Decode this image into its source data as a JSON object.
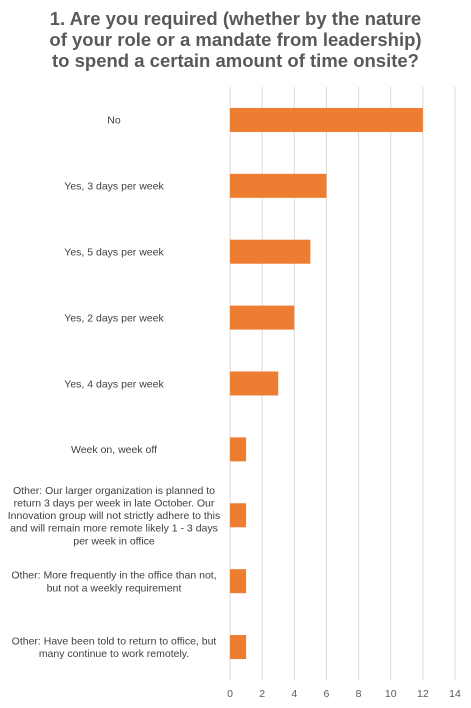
{
  "chart_data": {
    "type": "bar",
    "orientation": "horizontal",
    "title": "1. Are you required (whether by the nature of your role or a mandate from leadership) to spend a certain amount of time onsite?",
    "title_lines": [
      "1. Are you required (whether by the nature",
      "of your role or a mandate from leadership)",
      "to spend a certain amount of time onsite?"
    ],
    "categories": [
      "No",
      "Yes, 3 days per week",
      "Yes, 5 days per week",
      "Yes, 2 days per week",
      "Yes, 4 days per week",
      "Week on, week off",
      "Other: Our larger organization is planned to return 3 days per week in late October. Our Innovation group will not strictly adhere to this and will remain more remote likely 1 - 3 days per week in office",
      "Other: More frequently in the office than not, but not a weekly requirement",
      "Other: Have been told to return to office, but many continue to work remotely."
    ],
    "category_lines": [
      [
        "No"
      ],
      [
        "Yes, 3 days per week"
      ],
      [
        "Yes, 5 days per week"
      ],
      [
        "Yes, 2 days per week"
      ],
      [
        "Yes, 4 days per week"
      ],
      [
        "Week on, week off"
      ],
      [
        "Other: Our larger organization is planned to",
        "return 3 days per week in late October. Our",
        "Innovation group will not strictly adhere to this",
        "and will remain more remote likely 1 - 3 days",
        "per week in office"
      ],
      [
        "Other: More frequently in the office than not,",
        "but not a weekly requirement"
      ],
      [
        "Other: Have been told to return to office, but",
        "many continue to work remotely."
      ]
    ],
    "values": [
      12,
      6,
      5,
      4,
      3,
      1,
      1,
      1,
      1
    ],
    "xlim": [
      0,
      14
    ],
    "x_ticks": [
      0,
      2,
      4,
      6,
      8,
      10,
      12,
      14
    ],
    "xlabel": "",
    "ylabel": "",
    "grid": "vertical",
    "legend": "none",
    "colors": {
      "bar": "#ED7D31",
      "grid": "#D9D9D9",
      "text": "#404040",
      "title": "#595959"
    }
  }
}
